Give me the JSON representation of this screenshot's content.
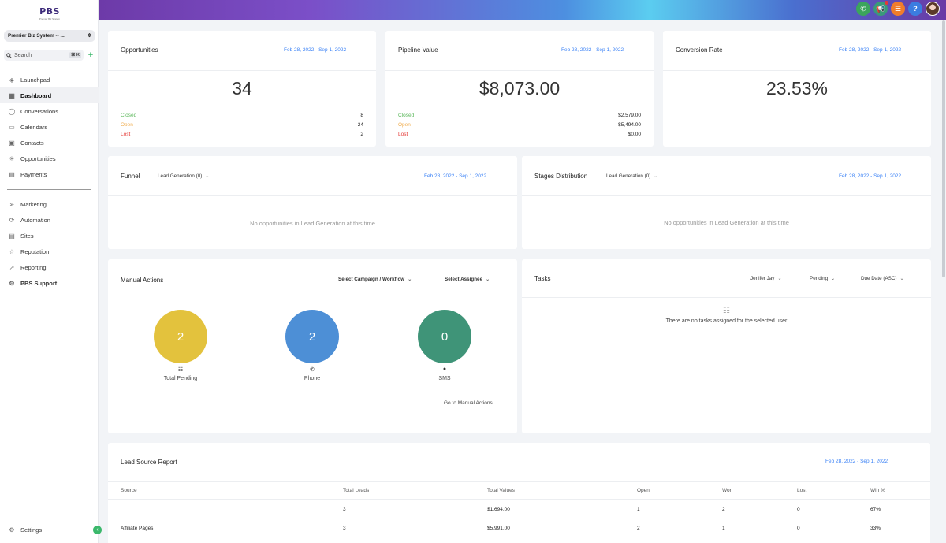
{
  "brand": {
    "logo": "PBS",
    "logo_sub": "Premier Biz System"
  },
  "sidebar": {
    "account": "Premier Biz System -- ...",
    "search_placeholder": "Search",
    "search_shortcut": "⌘ K",
    "items": [
      {
        "label": "Launchpad",
        "icon": "rocket-icon"
      },
      {
        "label": "Dashboard",
        "icon": "grid-icon",
        "active": true
      },
      {
        "label": "Conversations",
        "icon": "chat-icon"
      },
      {
        "label": "Calendars",
        "icon": "calendar-icon"
      },
      {
        "label": "Contacts",
        "icon": "contacts-icon"
      },
      {
        "label": "Opportunities",
        "icon": "opportunities-icon"
      },
      {
        "label": "Payments",
        "icon": "payments-icon"
      }
    ],
    "items2": [
      {
        "label": "Marketing",
        "icon": "send-icon"
      },
      {
        "label": "Automation",
        "icon": "automation-icon"
      },
      {
        "label": "Sites",
        "icon": "sites-icon"
      },
      {
        "label": "Reputation",
        "icon": "star-icon"
      },
      {
        "label": "Reporting",
        "icon": "trend-icon"
      },
      {
        "label": "PBS Support",
        "icon": "gear-icon"
      }
    ],
    "settings": "Settings"
  },
  "colors": {
    "closed": "#5cb85c",
    "open": "#f0ad4e",
    "lost": "#e53935",
    "pending": "#e3c23d",
    "phone": "#4d8fd6",
    "sms": "#3f9478",
    "link": "#3b82f6"
  },
  "opportunities": {
    "title": "Opportunities",
    "date": "Feb 28, 2022 - Sep 1, 2022",
    "value": "34",
    "rows": [
      {
        "label": "Closed",
        "value": "8"
      },
      {
        "label": "Open",
        "value": "24"
      },
      {
        "label": "Lost",
        "value": "2"
      }
    ]
  },
  "pipeline": {
    "title": "Pipeline Value",
    "date": "Feb 28, 2022 - Sep 1, 2022",
    "value": "$8,073.00",
    "rows": [
      {
        "label": "Closed",
        "value": "$2,579.00"
      },
      {
        "label": "Open",
        "value": "$5,494.00"
      },
      {
        "label": "Lost",
        "value": "$0.00"
      }
    ]
  },
  "conversion": {
    "title": "Conversion Rate",
    "date": "Feb 28, 2022 - Sep 1, 2022",
    "value": "23.53%"
  },
  "funnel": {
    "title": "Funnel",
    "pipeline": "Lead Generation (0)",
    "date": "Feb 28, 2022 - Sep 1, 2022",
    "empty": "No opportunities in Lead Generation at this time"
  },
  "stages": {
    "title": "Stages Distribution",
    "pipeline": "Lead Generation (0)",
    "date": "Feb 28, 2022 - Sep 1, 2022",
    "empty": "No opportunities in Lead Generation at this time"
  },
  "manual_actions": {
    "title": "Manual Actions",
    "campaign": "Select Campaign / Workflow",
    "assignee": "Select Assignee",
    "pending": {
      "value": "2",
      "label": "Total Pending"
    },
    "phone": {
      "value": "2",
      "label": "Phone"
    },
    "sms": {
      "value": "0",
      "label": "SMS"
    },
    "link": "Go to Manual Actions"
  },
  "tasks": {
    "title": "Tasks",
    "user": "Jenifer Jay",
    "status": "Pending",
    "sort": "Due Date (ASC)",
    "empty": "There are no tasks assigned for the selected user"
  },
  "lead_source": {
    "title": "Lead Source Report",
    "date": "Feb 28, 2022 - Sep 1, 2022",
    "columns": [
      "Source",
      "Total Leads",
      "Total Values",
      "Open",
      "Won",
      "Lost",
      "Win %"
    ],
    "rows": [
      [
        "",
        "3",
        "$1,694.00",
        "1",
        "2",
        "0",
        "67%"
      ],
      [
        "Affiliate Pages",
        "3",
        "$5,991.00",
        "2",
        "1",
        "0",
        "33%"
      ]
    ]
  }
}
